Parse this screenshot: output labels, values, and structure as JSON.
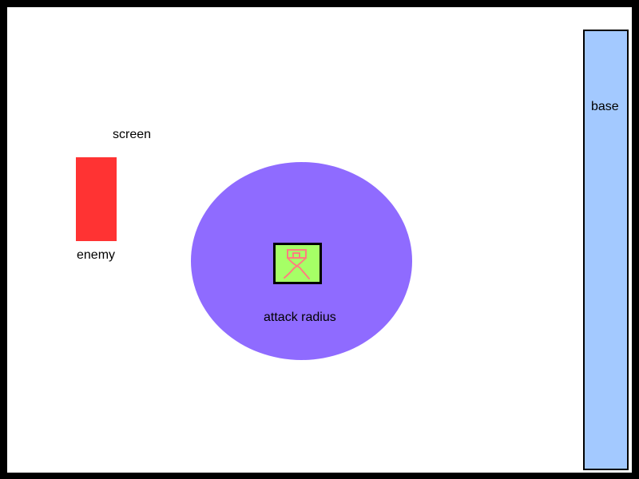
{
  "labels": {
    "screen": "screen",
    "enemy": "enemy",
    "attack_radius": "attack radius",
    "base": "base"
  },
  "colors": {
    "background": "#ffffff",
    "border": "#000000",
    "enemy": "#ff3333",
    "attack_radius": "#8f6bff",
    "tower_fill": "#a6ff66",
    "tower_glyph": "#ff7f7f",
    "base": "#a3c9ff"
  },
  "icons": {
    "tower": "tower-character-icon"
  }
}
